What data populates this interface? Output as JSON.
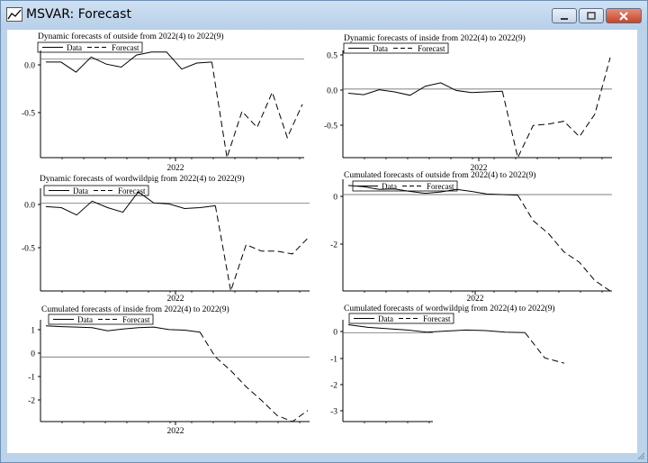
{
  "window": {
    "title": "MSVAR: Forecast",
    "icon": "chart-app-icon",
    "controls": [
      "minimize-icon",
      "maximize-icon",
      "close-icon"
    ]
  },
  "legend": {
    "data": "Data",
    "forecast": "Forecast"
  },
  "chart_data": [
    {
      "type": "line",
      "title": "Dynamic forecasts of outside from 2022(4) to 2022(9)",
      "xlabel": "2022",
      "yticks": [
        "0.0",
        "-0.5"
      ],
      "ylim": [
        -0.98,
        0.05
      ],
      "series": [
        {
          "name": "Data",
          "values": [
            -0.03,
            -0.03,
            -0.13,
            0.02,
            -0.05,
            -0.08,
            0.04,
            0.07,
            0.07,
            -0.1,
            -0.04,
            -0.03
          ]
        },
        {
          "name": "Forecast",
          "values": [
            -0.03,
            -0.98,
            -0.52,
            -0.68,
            -0.33,
            -0.78,
            -0.45
          ]
        }
      ]
    },
    {
      "type": "line",
      "title": "Dynamic forecasts of inside from 2022(4) to 2022(9)",
      "xlabel": "2022",
      "yticks": [
        "0.5",
        "0.0",
        "-0.5"
      ],
      "ylim": [
        -0.98,
        0.5
      ],
      "series": [
        {
          "name": "Data",
          "values": [
            -0.06,
            -0.08,
            -0.01,
            -0.04,
            -0.09,
            0.04,
            0.09,
            -0.02,
            -0.05,
            -0.04,
            -0.03
          ]
        },
        {
          "name": "Forecast",
          "values": [
            -0.03,
            -0.98,
            -0.52,
            -0.5,
            -0.46,
            -0.68,
            -0.36,
            0.45
          ]
        }
      ]
    },
    {
      "type": "line",
      "title": "Dynamic forecasts of wordwildpig from 2022(4) to 2022(9)",
      "xlabel": "2022",
      "yticks": [
        "0.0",
        "-0.5"
      ],
      "ylim": [
        -0.95,
        0.12
      ],
      "series": [
        {
          "name": "Data",
          "values": [
            -0.04,
            -0.05,
            -0.13,
            0.02,
            -0.05,
            -0.1,
            0.12,
            0.0,
            -0.01,
            -0.06,
            -0.05,
            -0.03
          ]
        },
        {
          "name": "Forecast",
          "values": [
            -0.03,
            -0.95,
            -0.45,
            -0.52,
            -0.52,
            -0.55,
            -0.38
          ]
        }
      ]
    },
    {
      "type": "line",
      "title": "Cumulated forecasts  of outside from 2022(4) to 2022(9)",
      "xlabel": "2022",
      "yticks": [
        "0",
        "-2"
      ],
      "ylim": [
        -3.7,
        0.45
      ],
      "series": [
        {
          "name": "Data",
          "values": [
            0.35,
            0.3,
            0.2,
            0.22,
            0.12,
            0.05,
            0.1,
            0.2,
            0.12,
            0.02,
            0.0,
            -0.02
          ]
        },
        {
          "name": "Forecast",
          "values": [
            -0.02,
            -1.0,
            -1.5,
            -2.2,
            -2.6,
            -3.3,
            -3.7
          ]
        }
      ]
    },
    {
      "type": "line",
      "title": "Cumulated forecasts  of inside from 2022(4) to 2022(9)",
      "xlabel": "2022",
      "yticks": [
        "1",
        "0",
        "-1",
        "-2"
      ],
      "ylim": [
        -2.6,
        1.35
      ],
      "series": [
        {
          "name": "Data",
          "values": [
            1.25,
            1.22,
            1.2,
            1.18,
            1.05,
            1.12,
            1.18,
            1.2,
            1.1,
            1.08,
            1.0
          ]
        },
        {
          "name": "Forecast",
          "values": [
            1.0,
            0.0,
            -0.55,
            -1.2,
            -1.75,
            -2.35,
            -2.6,
            -2.15
          ]
        }
      ]
    },
    {
      "type": "line",
      "title": "Cumulated forecasts  of wordwildpig from 2022(4) to 2022(9)",
      "xlabel": "",
      "yticks": [
        "0",
        "-1",
        "-2",
        "-3"
      ],
      "ylim": [
        -3.35,
        0.35
      ],
      "series": [
        {
          "name": "Data",
          "values": [
            0.3,
            0.2,
            0.15,
            0.1,
            0.02,
            0.06,
            0.1,
            0.08,
            0.02,
            0.0
          ]
        },
        {
          "name": "Forecast",
          "values": [
            0.0,
            -0.95,
            -1.15
          ]
        }
      ]
    }
  ]
}
